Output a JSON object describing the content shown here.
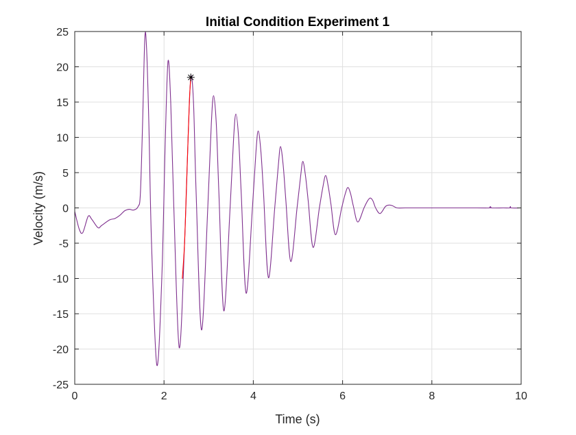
{
  "chart_data": {
    "type": "line",
    "title": "Initial Condition Experiment 1",
    "xlabel": "Time (s)",
    "ylabel": "Velocity (m/s)",
    "xlim": [
      0,
      10
    ],
    "ylim": [
      -25,
      25
    ],
    "xticks": [
      "0",
      "2",
      "4",
      "6",
      "8",
      "10"
    ],
    "yticks": [
      "-25",
      "-20",
      "-15",
      "-10",
      "-5",
      "0",
      "5",
      "10",
      "15",
      "20",
      "25"
    ],
    "grid": true,
    "box": true,
    "colors": {
      "main": "#7e2f8e",
      "highlight": "#ff0000",
      "marker": "#000000"
    },
    "series": [
      {
        "role": "main",
        "x": [
          0.0,
          0.1,
          0.18,
          0.3,
          0.38,
          0.52,
          0.6,
          0.78,
          0.9,
          1.02,
          1.12,
          1.22,
          1.32,
          1.42,
          1.47,
          1.52,
          1.57,
          1.61,
          1.66,
          1.72,
          1.84,
          1.95,
          2.03,
          2.09,
          2.15,
          2.22,
          2.34,
          2.46,
          2.54,
          2.6,
          2.66,
          2.72,
          2.84,
          2.98,
          3.06,
          3.11,
          3.17,
          3.23,
          3.34,
          3.48,
          3.56,
          3.61,
          3.67,
          3.73,
          3.84,
          3.98,
          4.06,
          4.11,
          4.17,
          4.23,
          4.34,
          4.48,
          4.56,
          4.61,
          4.67,
          4.73,
          4.84,
          4.98,
          5.06,
          5.11,
          5.17,
          5.23,
          5.34,
          5.48,
          5.56,
          5.62,
          5.68,
          5.74,
          5.84,
          5.98,
          6.06,
          6.12,
          6.18,
          6.24,
          6.34,
          6.48,
          6.56,
          6.62,
          6.68,
          6.74,
          6.84,
          6.96,
          7.04,
          7.12,
          7.22,
          7.4,
          8.0,
          9.0,
          9.3,
          9.31,
          9.32,
          9.6,
          9.75,
          9.76,
          9.77,
          10.0
        ],
        "y": [
          -0.5,
          -3.0,
          -3.5,
          -1.2,
          -1.6,
          -2.8,
          -2.5,
          -1.7,
          -1.5,
          -1.0,
          -0.4,
          -0.2,
          -0.3,
          0.2,
          2.0,
          12.0,
          24.1,
          22.5,
          12.0,
          -5.0,
          -22.3,
          -10.0,
          10.0,
          20.8,
          15.0,
          0.0,
          -19.8,
          -5.0,
          10.0,
          18.5,
          15.0,
          2.0,
          -17.3,
          0.0,
          12.0,
          15.9,
          12.0,
          2.0,
          -14.6,
          0.0,
          10.0,
          13.3,
          10.0,
          2.0,
          -12.1,
          0.0,
          8.0,
          10.9,
          8.0,
          2.0,
          -9.9,
          0.0,
          6.0,
          8.7,
          6.0,
          1.0,
          -7.6,
          0.0,
          4.5,
          6.6,
          4.5,
          1.0,
          -5.6,
          0.0,
          3.0,
          4.6,
          3.0,
          0.5,
          -3.8,
          0.0,
          2.0,
          2.9,
          2.0,
          0.3,
          -2.0,
          0.0,
          1.0,
          1.4,
          1.0,
          0.0,
          -0.8,
          0.2,
          0.4,
          0.3,
          0.0,
          0.0,
          0.0,
          0.0,
          0.0,
          0.2,
          0.0,
          0.0,
          0.0,
          0.2,
          0.0,
          0.0
        ]
      },
      {
        "role": "highlight",
        "x": [
          2.41,
          2.46,
          2.5,
          2.54,
          2.57,
          2.6
        ],
        "y": [
          -10.0,
          -5.0,
          2.5,
          10.0,
          15.5,
          18.5
        ]
      }
    ],
    "markers": [
      {
        "symbol": "*",
        "x": 2.6,
        "y": 18.5
      }
    ]
  }
}
